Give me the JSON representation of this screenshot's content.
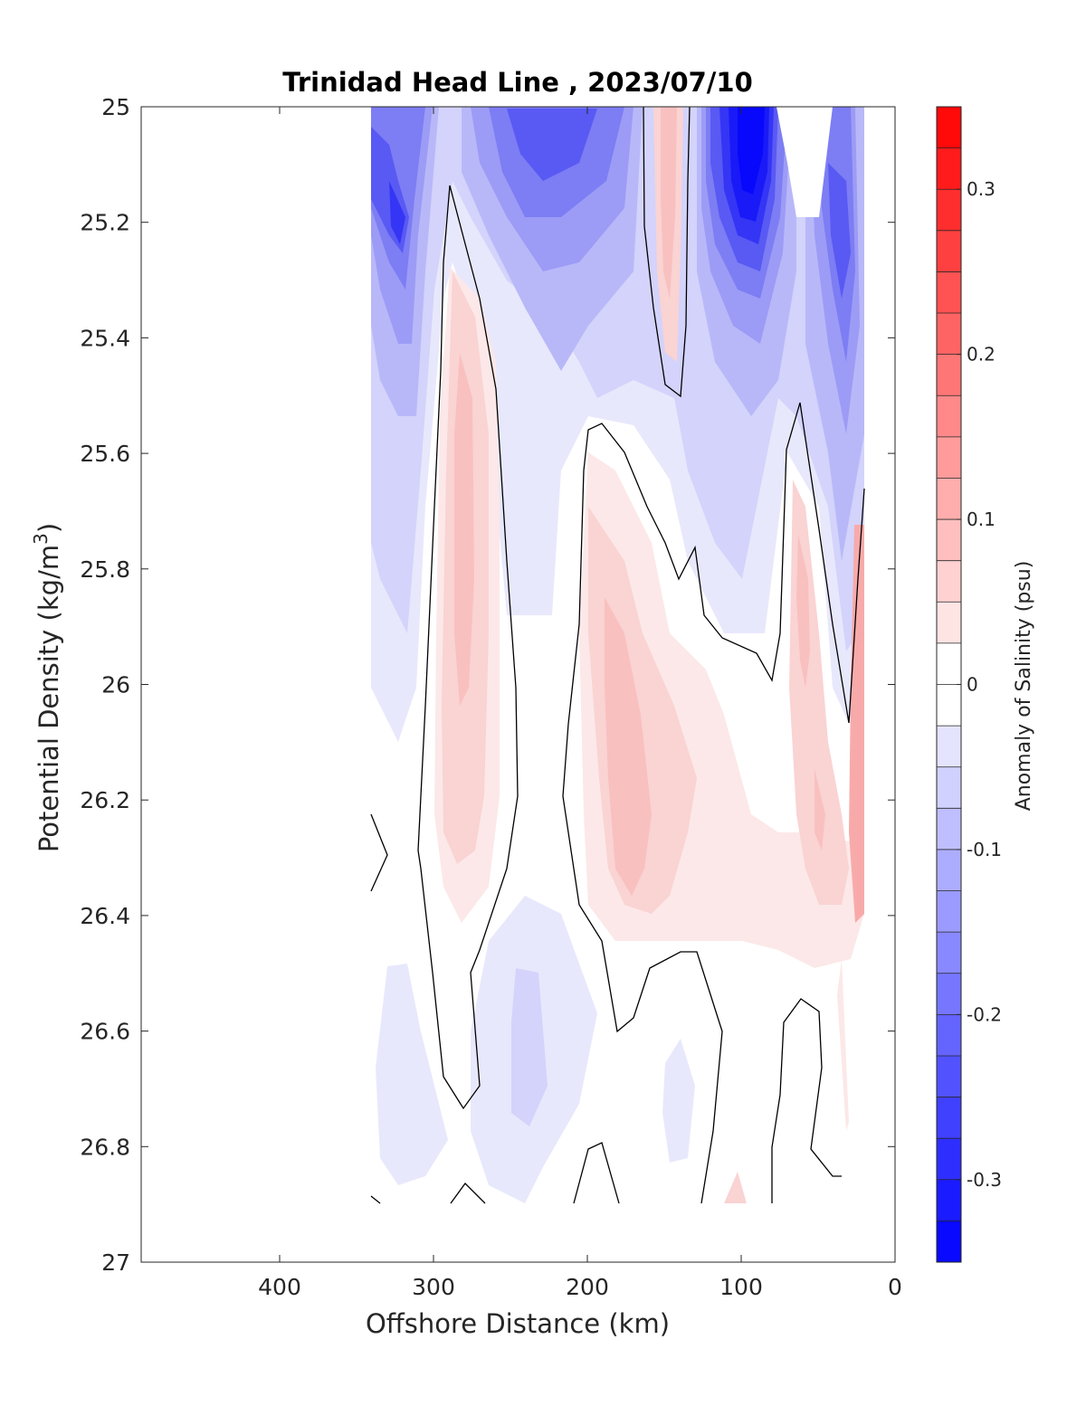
{
  "chart_data": {
    "type": "contour",
    "title": "Trinidad Head Line , 2023/07/10",
    "xlabel": "Offshore Distance (km)",
    "ylabel_main": "Potential Density (kg/m",
    "ylabel_sup": "3",
    "ylabel_close": ")",
    "x_reversed": true,
    "xlim": [
      0,
      490
    ],
    "ylim": [
      25,
      27
    ],
    "y_reversed": true,
    "x_ticks": [
      400,
      300,
      200,
      100,
      0
    ],
    "x_tick_labels": [
      "400",
      "300",
      "200",
      "100",
      "0"
    ],
    "y_ticks": [
      25,
      25.2,
      25.4,
      25.6,
      25.8,
      26,
      26.2,
      26.4,
      26.6,
      26.8,
      27
    ],
    "y_tick_labels": [
      "25",
      "25.2",
      "25.4",
      "25.6",
      "25.8",
      "26",
      "26.2",
      "26.4",
      "26.6",
      "26.8",
      "27"
    ],
    "colorbar": {
      "label": "Anomaly of Salinity (psu)",
      "range": [
        -0.35,
        0.35
      ],
      "levels": 28,
      "ticks": [
        0.3,
        0.2,
        0.1,
        0,
        -0.1,
        -0.2,
        -0.3
      ],
      "tick_labels": [
        "0.3",
        "0.2",
        "0.1",
        "0",
        "-0.1",
        "-0.2",
        "-0.3"
      ],
      "low_color": "#0000ff",
      "mid_color": "#ffffff",
      "high_color": "#ff0000"
    },
    "data_extent_x": [
      20,
      340
    ],
    "zero_contour_color": "#000000",
    "features": [
      {
        "x": 318,
        "y": 25.2,
        "anomaly": -0.2
      },
      {
        "x": 240,
        "y": 25.05,
        "anomaly": -0.21
      },
      {
        "x": 145,
        "y": 25.15,
        "anomaly": 0.07
      },
      {
        "x": 93,
        "y": 25.15,
        "anomaly": -0.33
      },
      {
        "x": 40,
        "y": 25.3,
        "anomaly": -0.22
      },
      {
        "x": 280,
        "y": 25.9,
        "anomaly": 0.08
      },
      {
        "x": 180,
        "y": 26.15,
        "anomaly": 0.06
      },
      {
        "x": 60,
        "y": 26.0,
        "anomaly": 0.07
      },
      {
        "x": 22,
        "y": 26.1,
        "anomaly": 0.09
      },
      {
        "x": 240,
        "y": 26.6,
        "anomaly": -0.06
      },
      {
        "x": 330,
        "y": 26.7,
        "anomaly": -0.04
      },
      {
        "x": 140,
        "y": 26.7,
        "anomaly": -0.03
      }
    ]
  }
}
